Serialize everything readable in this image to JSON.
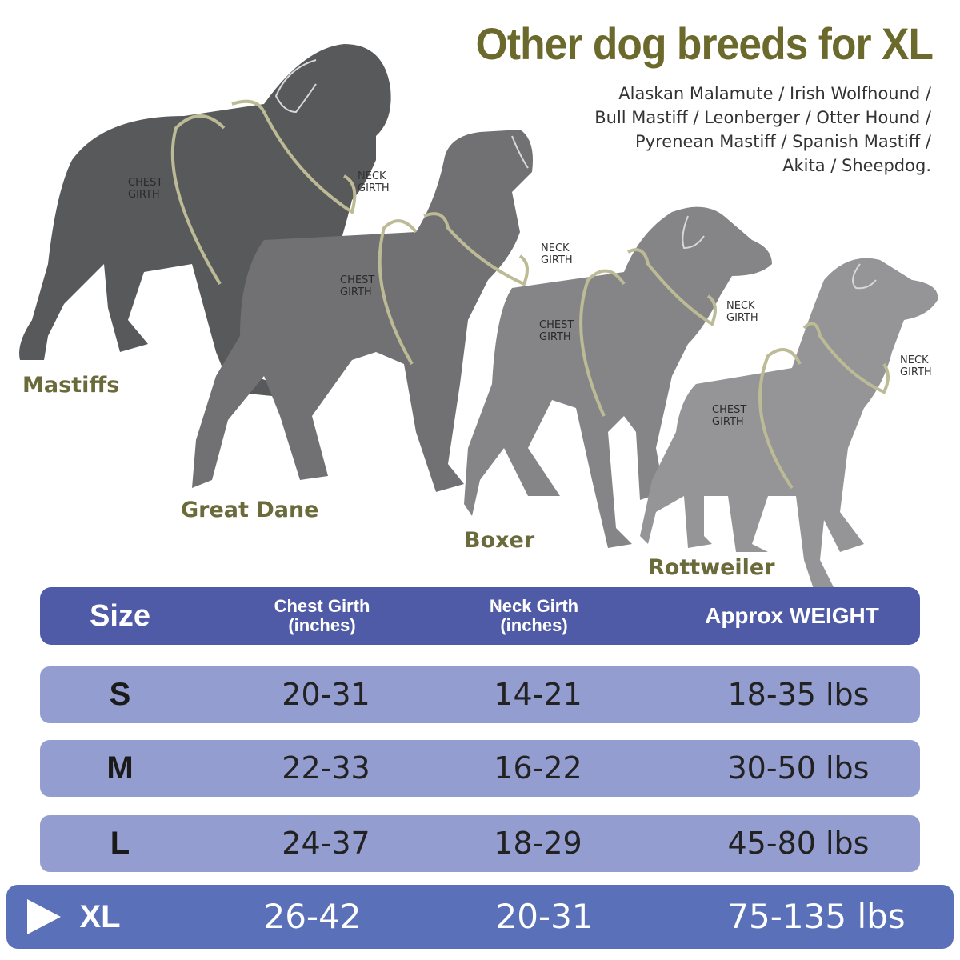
{
  "title": "Other dog breeds for XL",
  "breeds_lines": [
    "Alaskan Malamute / Irish Wolfhound /",
    "Bull Mastiff / Leonberger / Otter Hound /",
    "Pyrenean Mastiff / Spanish Mastiff /",
    "Akita / Sheepdog."
  ],
  "dogs": [
    {
      "name": "Mastiffs",
      "chest": "CHEST\nGIRTH",
      "neck": "NECK\nGIRTH"
    },
    {
      "name": "Great Dane",
      "chest": "CHEST\nGIRTH",
      "neck": "NECK\nGIRTH"
    },
    {
      "name": "Boxer",
      "chest": "CHEST\nGIRTH",
      "neck": "NECK\nGIRTH"
    },
    {
      "name": "Rottweiler",
      "chest": "CHEST\nGIRTH",
      "neck": "NECK\nGIRTH"
    }
  ],
  "table": {
    "headers": {
      "size": "Size",
      "chest_1": "Chest Girth",
      "chest_2": "(inches)",
      "neck_1": "Neck Girth",
      "neck_2": "(inches)",
      "weight": "Approx WEIGHT"
    },
    "rows": [
      {
        "size": "S",
        "chest": "20-31",
        "neck": "14-21",
        "weight": "18-35 lbs"
      },
      {
        "size": "M",
        "chest": "22-33",
        "neck": "16-22",
        "weight": "30-50 lbs"
      },
      {
        "size": "L",
        "chest": "24-37",
        "neck": "18-29",
        "weight": "45-80 lbs"
      },
      {
        "size": "XL",
        "chest": "26-42",
        "neck": "20-31",
        "weight": "75-135 lbs",
        "highlighted": true
      }
    ]
  },
  "colors": {
    "title": "#6b6a2c",
    "header": "#4f5ba6",
    "row": "#949dd0",
    "highlight_row": "#5a70b8",
    "harness": "#bcbb95"
  },
  "icons": {
    "highlight_marker": "play-triangle-icon"
  }
}
